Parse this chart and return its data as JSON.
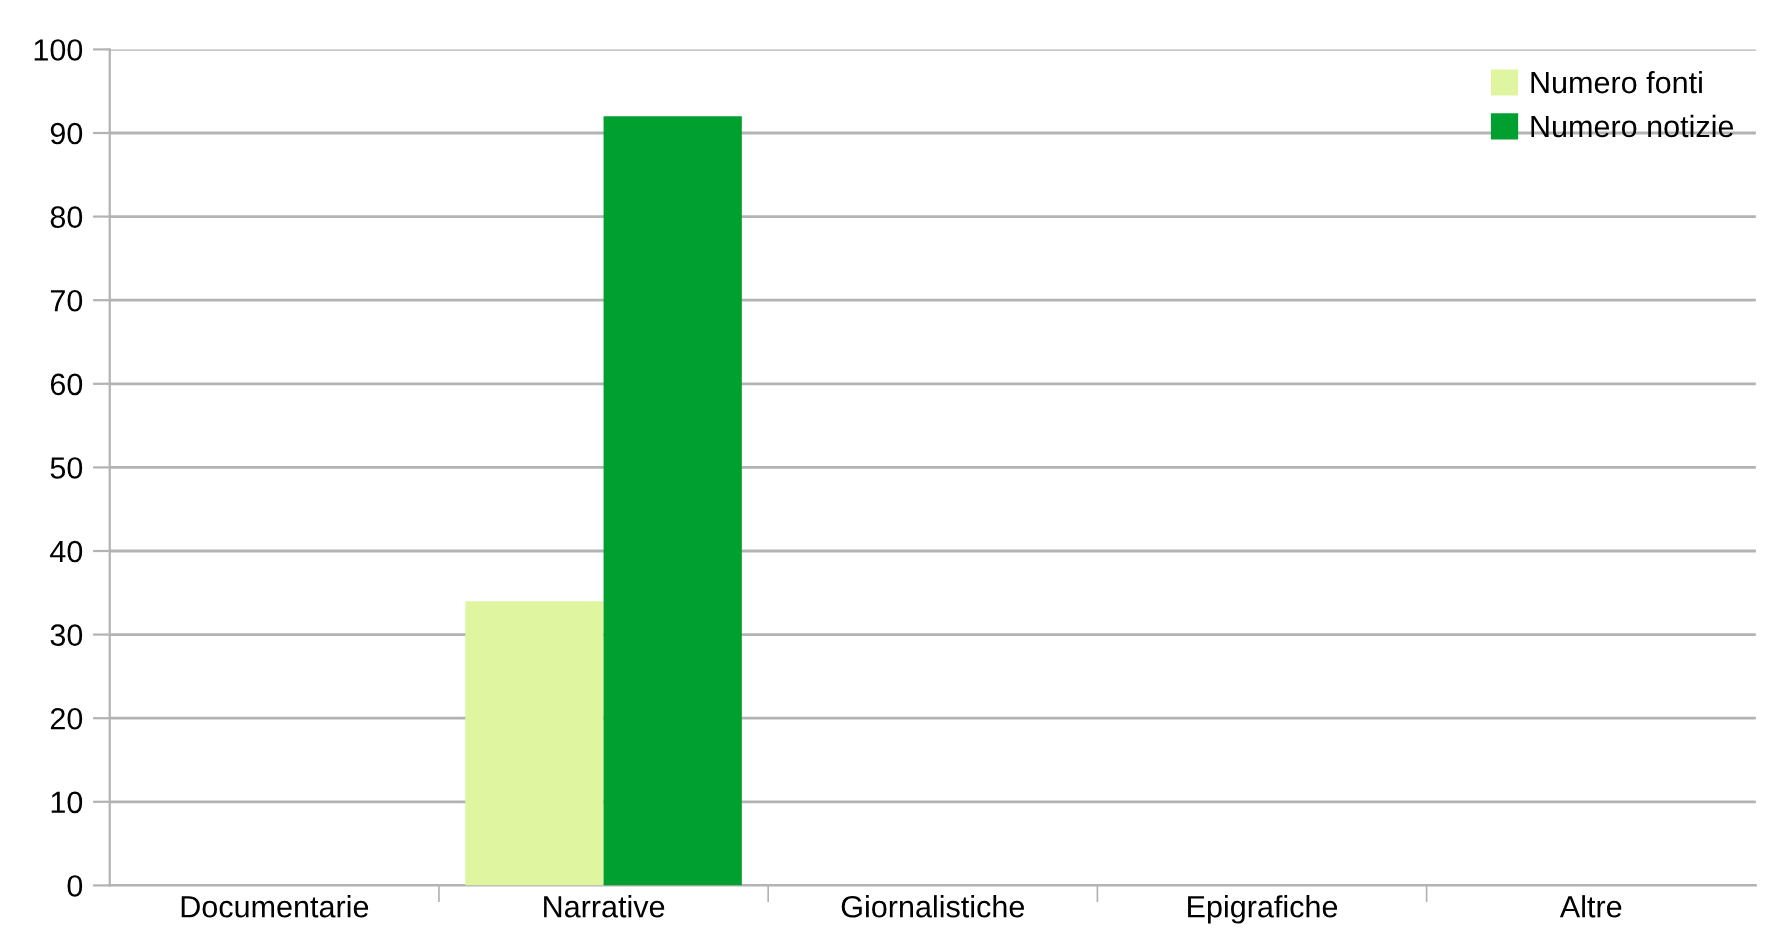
{
  "chart_data": {
    "type": "bar",
    "categories": [
      "Documentarie",
      "Narrative",
      "Giornalistiche",
      "Epigrafiche",
      "Altre"
    ],
    "series": [
      {
        "name": "Numero fonti",
        "color": "#e0f5a0",
        "values": [
          0,
          34,
          0,
          0,
          0
        ]
      },
      {
        "name": "Numero notizie",
        "color": "#00a030",
        "values": [
          0,
          92,
          0,
          0,
          0
        ]
      }
    ],
    "ylim": [
      0,
      100
    ],
    "yticks": [
      0,
      10,
      20,
      30,
      40,
      50,
      60,
      70,
      80,
      90,
      100
    ],
    "grid": "y",
    "legend": "top right"
  }
}
